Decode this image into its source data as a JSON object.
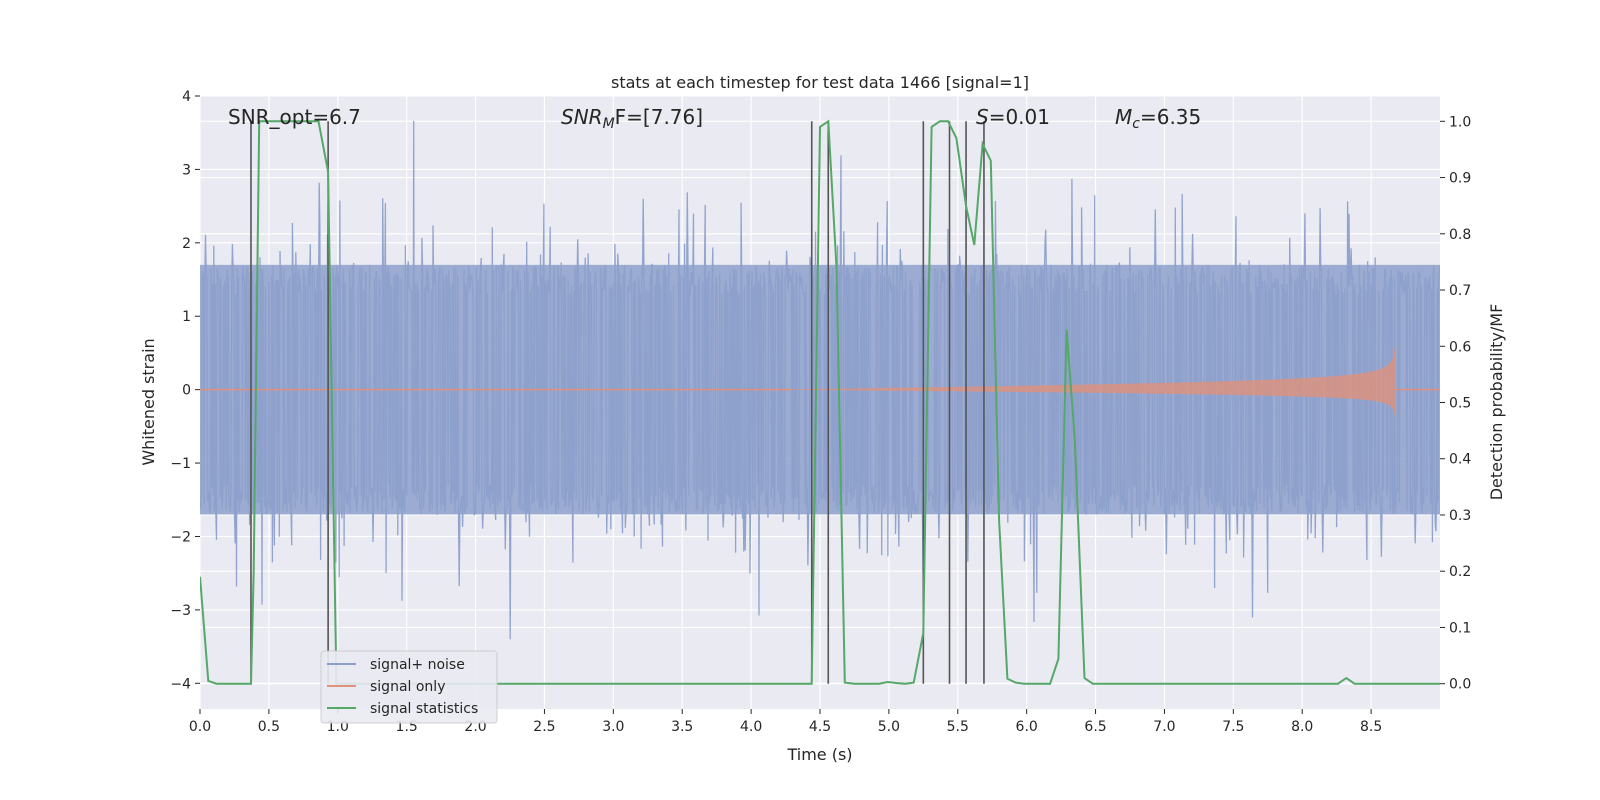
{
  "chart_data": {
    "type": "line",
    "title": "stats at each timestep for test data 1466 [signal=1]",
    "xlabel": "Time (s)",
    "ylabel_left": "Whitened strain",
    "ylabel_right": "Detection probability/MF",
    "xlim": [
      0.0,
      9.0
    ],
    "ylim_left": [
      -4.35,
      4.0
    ],
    "ylim_right": [
      -0.045,
      1.045
    ],
    "xticks": [
      "0.0",
      "0.5",
      "1.0",
      "1.5",
      "2.0",
      "2.5",
      "3.0",
      "3.5",
      "4.0",
      "4.5",
      "5.0",
      "5.5",
      "6.0",
      "6.5",
      "7.0",
      "7.5",
      "8.0",
      "8.5"
    ],
    "yticks_left": [
      "4",
      "3",
      "2",
      "1",
      "0",
      "−1",
      "−2",
      "−3",
      "−4"
    ],
    "yticks_right": [
      "1.0",
      "0.9",
      "0.8",
      "0.7",
      "0.6",
      "0.5",
      "0.4",
      "0.3",
      "0.2",
      "0.1",
      "0.0"
    ],
    "grid": true,
    "legend_position": "lower-left",
    "colors": {
      "noise": "#8da0cb",
      "signal": "#e0917a",
      "stats": "#55a868",
      "vlines": "#555555",
      "plot_bg": "#eaeaf2",
      "grid": "#ffffff"
    },
    "annotations": [
      {
        "text": "SNR_opt=6.7",
        "x": 0.2
      },
      {
        "main": "SNR",
        "sub": "M",
        "rest": "F=[7.76]",
        "x": 2.6
      },
      {
        "main": "S",
        "rest": "=0.01",
        "x": 5.6
      },
      {
        "main": "M",
        "sub": "c",
        "rest": "=6.35",
        "x": 6.6
      }
    ],
    "vertical_lines": [
      0.37,
      0.93,
      4.44,
      4.56,
      5.25,
      5.44,
      5.56,
      5.69
    ],
    "series": [
      {
        "name": "signal+ noise",
        "kind": "noise",
        "amplitude_envelope": 1.7,
        "duration": 9.0
      },
      {
        "name": "signal only",
        "kind": "chirp",
        "start": 4.3,
        "merger": 8.68,
        "peak_amplitude": 0.9
      },
      {
        "name": "signal statistics",
        "kind": "line",
        "axis": "right",
        "x": [
          0.0,
          0.06,
          0.12,
          0.18,
          0.25,
          0.31,
          0.37,
          0.39,
          0.43,
          0.49,
          0.55,
          0.62,
          0.68,
          0.74,
          0.8,
          0.86,
          0.93,
          0.99,
          1.05,
          1.11,
          1.17,
          4.38,
          4.44,
          4.5,
          4.56,
          4.62,
          4.68,
          4.75,
          4.81,
          4.87,
          4.93,
          4.99,
          5.06,
          5.12,
          5.18,
          5.25,
          5.31,
          5.37,
          5.43,
          5.49,
          5.56,
          5.62,
          5.68,
          5.74,
          5.8,
          5.86,
          5.92,
          5.98,
          6.05,
          6.11,
          6.17,
          6.23,
          6.29,
          6.35,
          6.42,
          6.48,
          6.54,
          6.6,
          8.2,
          8.26,
          8.32,
          8.38,
          8.44,
          8.5,
          8.56,
          8.62,
          8.68,
          9.0
        ],
        "y": [
          0.19,
          0.005,
          0.0,
          0.0,
          0.0,
          0.0,
          0.0,
          0.2,
          1.0,
          1.0,
          1.0,
          1.0,
          1.0,
          1.0,
          1.0,
          1.0,
          0.91,
          0.0,
          0.0,
          0.0,
          0.0,
          0.0,
          0.0,
          0.99,
          1.0,
          0.74,
          0.002,
          0.0,
          0.0,
          0.0,
          0.0,
          0.003,
          0.001,
          0.0,
          0.002,
          0.09,
          0.99,
          1.0,
          1.0,
          0.97,
          0.85,
          0.78,
          0.96,
          0.93,
          0.29,
          0.009,
          0.002,
          0.0,
          0.0,
          0.0,
          0.0,
          0.044,
          0.63,
          0.43,
          0.01,
          0.0,
          0.0,
          0.0,
          0.0,
          0.0,
          0.01,
          0.0,
          0.0,
          0.0,
          0.0,
          0.0,
          0.0,
          0.0
        ]
      }
    ]
  }
}
